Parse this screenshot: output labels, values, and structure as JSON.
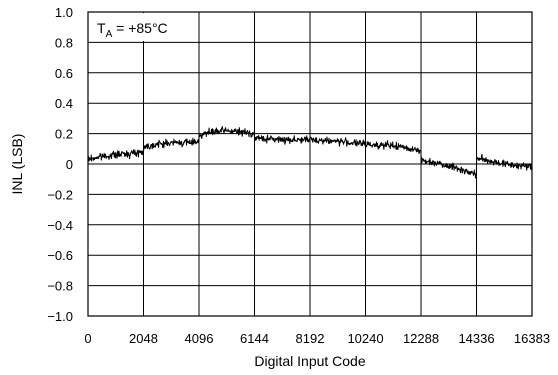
{
  "chart_data": {
    "type": "line",
    "title": "",
    "xlabel": "Digital Input Code",
    "ylabel": "INL (LSB)",
    "annotation": {
      "prefix": "T",
      "subscript": "A",
      "suffix": " = +85°C"
    },
    "xlim": [
      0,
      16383
    ],
    "ylim": [
      -1.0,
      1.0
    ],
    "grid": true,
    "legend": "none",
    "line_color": "#000000",
    "x_ticks": [
      0,
      2048,
      4096,
      6144,
      8192,
      10240,
      12288,
      14336,
      16383
    ],
    "x_tick_labels": [
      "0",
      "2048",
      "4096",
      "6144",
      "8192",
      "10240",
      "12288",
      "14336",
      "16383"
    ],
    "y_ticks": [
      1.0,
      0.8,
      0.6,
      0.4,
      0.2,
      0,
      -0.2,
      -0.4,
      -0.6,
      -0.8,
      -1.0
    ],
    "y_tick_labels": [
      "1.0",
      "0.8",
      "0.6",
      "0.4",
      "0.2",
      "0",
      "−0.2",
      "−0.4",
      "−0.6",
      "−0.8",
      "−1.0"
    ],
    "series": [
      {
        "noise": 0.022,
        "x": [
          0,
          512,
          1024,
          1536,
          2047,
          2048,
          2560,
          3072,
          3584,
          4095,
          4096,
          4608,
          5120,
          5632,
          6143,
          6144,
          7168,
          8192,
          9216,
          10240,
          11264,
          12287,
          12288,
          12800,
          13312,
          13824,
          14335,
          14336,
          14848,
          15360,
          15872,
          16383
        ],
        "y": [
          0.03,
          0.05,
          0.06,
          0.07,
          0.08,
          0.11,
          0.13,
          0.14,
          0.14,
          0.15,
          0.19,
          0.21,
          0.22,
          0.21,
          0.2,
          0.17,
          0.16,
          0.16,
          0.15,
          0.13,
          0.12,
          0.09,
          0.02,
          0.01,
          -0.01,
          -0.04,
          -0.07,
          0.04,
          0.02,
          0.0,
          -0.01,
          -0.02
        ]
      }
    ]
  }
}
